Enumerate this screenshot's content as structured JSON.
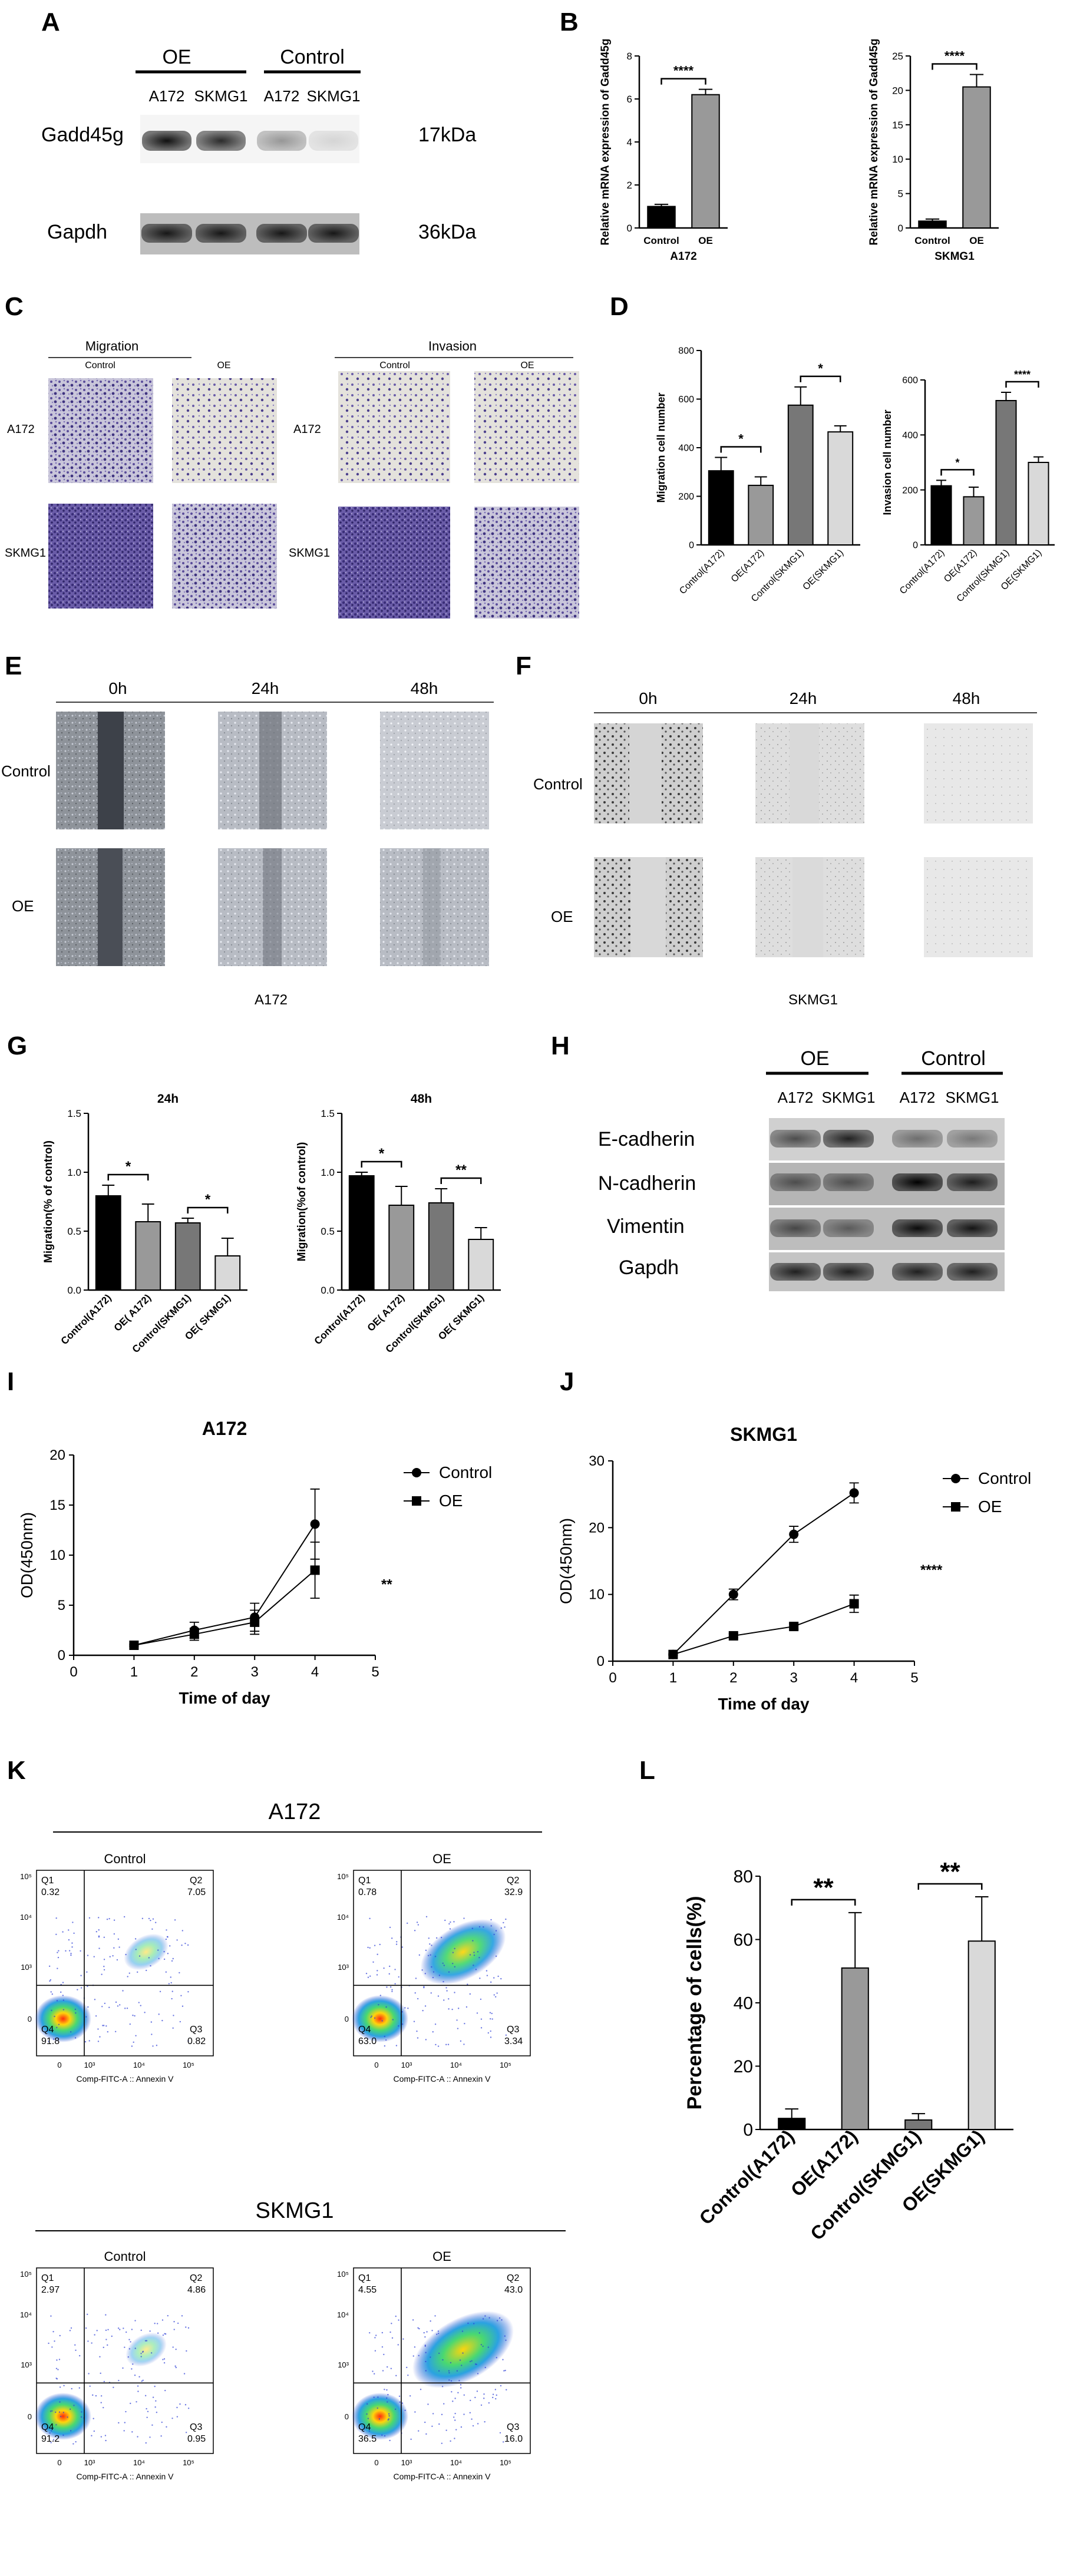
{
  "panel_letters": [
    "A",
    "B",
    "C",
    "D",
    "E",
    "F",
    "G",
    "H",
    "I",
    "J",
    "K",
    "L"
  ],
  "panel_a": {
    "group_oe": "OE",
    "group_control": "Control",
    "lanes": [
      "A172",
      "SKMG1",
      "A172",
      "SKMG1"
    ],
    "rows": [
      {
        "protein": "Gadd45g",
        "size": "17kDa",
        "intensity": [
          0.85,
          0.75,
          0.35,
          0.12
        ]
      },
      {
        "protein": "Gapdh",
        "size": "36kDa",
        "intensity": [
          0.8,
          0.8,
          0.8,
          0.8
        ]
      }
    ]
  },
  "panel_c": {
    "section_migration": "Migration",
    "section_invasion": "Invasion",
    "col_control": "Control",
    "col_oe": "OE",
    "rows": [
      "A172",
      "SKMG1"
    ]
  },
  "panel_e": {
    "times": [
      "0h",
      "24h",
      "48h"
    ],
    "rows": [
      "Control",
      "OE"
    ],
    "caption": "A172"
  },
  "panel_f": {
    "times": [
      "0h",
      "24h",
      "48h"
    ],
    "rows": [
      "Control",
      "OE"
    ],
    "caption": "SKMG1"
  },
  "panel_h": {
    "group_oe": "OE",
    "group_control": "Control",
    "lanes": [
      "A172",
      "SKMG1",
      "A172",
      "SKMG1"
    ],
    "rows": [
      {
        "protein": "E-cadherin",
        "intensity": [
          0.6,
          0.8,
          0.45,
          0.4
        ]
      },
      {
        "protein": "N-cadherin",
        "intensity": [
          0.55,
          0.55,
          0.95,
          0.8
        ]
      },
      {
        "protein": "Vimentin",
        "intensity": [
          0.6,
          0.5,
          0.9,
          0.85
        ]
      },
      {
        "protein": "Gapdh",
        "intensity": [
          0.8,
          0.8,
          0.8,
          0.8
        ]
      }
    ]
  },
  "panel_k": {
    "groups": [
      {
        "cell": "A172",
        "plots": [
          {
            "title": "Control",
            "q1": "0.32",
            "q2": "7.05",
            "q3": "0.82",
            "q4": "91.8"
          },
          {
            "title": "OE",
            "q1": "0.78",
            "q2": "32.9",
            "q3": "3.34",
            "q4": "63.0"
          }
        ]
      },
      {
        "cell": "SKMG1",
        "plots": [
          {
            "title": "Control",
            "q1": "2.97",
            "q2": "4.86",
            "q3": "0.95",
            "q4": "91.2"
          },
          {
            "title": "OE",
            "q1": "4.55",
            "q2": "43.0",
            "q3": "16.0",
            "q4": "36.5"
          }
        ]
      }
    ],
    "quadrant_labels": [
      "Q1",
      "Q2",
      "Q3",
      "Q4"
    ],
    "xlabel": "Comp-FITC-A :: Annexin V",
    "axis_ticks": [
      "10⁵",
      "10⁴",
      "10³",
      "0"
    ],
    "x_ticks": [
      "0",
      "10³",
      "10⁴",
      "10⁵"
    ]
  },
  "chart_data": [
    {
      "id": "B1",
      "type": "bar",
      "categories": [
        "Control",
        "OE"
      ],
      "values": [
        1.0,
        6.2
      ],
      "errors": [
        0.1,
        0.25
      ],
      "xlabel": "A172",
      "ylabel": "Relative mRNA expression of Gadd45g",
      "ylim": [
        0,
        8
      ],
      "yticks": [
        0,
        2,
        4,
        6,
        8
      ],
      "sig": "****",
      "colors": [
        "#000000",
        "#999999"
      ]
    },
    {
      "id": "B2",
      "type": "bar",
      "categories": [
        "Control",
        "OE"
      ],
      "values": [
        1.0,
        20.5
      ],
      "errors": [
        0.3,
        1.8
      ],
      "xlabel": "SKMG1",
      "ylabel": "Relative mRNA expression of Gadd45g",
      "ylim": [
        0,
        25
      ],
      "yticks": [
        0,
        5,
        10,
        15,
        20,
        25
      ],
      "sig": "****",
      "colors": [
        "#000000",
        "#999999"
      ]
    },
    {
      "id": "D1",
      "type": "bar",
      "categories": [
        "Control(A172)",
        "OE(A172)",
        "Control(SKMG1)",
        "OE(SKMG1)"
      ],
      "values": [
        305,
        245,
        575,
        465
      ],
      "errors": [
        55,
        35,
        75,
        25
      ],
      "ylabel": "Migration cell number",
      "ylim": [
        0,
        800
      ],
      "yticks": [
        0,
        200,
        400,
        600,
        800
      ],
      "sigs": [
        "*",
        "*"
      ],
      "colors": [
        "#000000",
        "#999999",
        "#777777",
        "#d9d9d9"
      ]
    },
    {
      "id": "D2",
      "type": "bar",
      "categories": [
        "Control(A172)",
        "OE(A172)",
        "Control(SKMG1)",
        "OE(SKMG1)"
      ],
      "values": [
        215,
        175,
        525,
        300
      ],
      "errors": [
        20,
        35,
        30,
        20
      ],
      "ylabel": "Invasion cell number",
      "ylim": [
        0,
        600
      ],
      "yticks": [
        0,
        200,
        400,
        600
      ],
      "sigs": [
        "*",
        "****"
      ],
      "colors": [
        "#000000",
        "#999999",
        "#777777",
        "#d9d9d9"
      ]
    },
    {
      "id": "G1",
      "type": "bar",
      "title": "24h",
      "categories": [
        "Control(A172)",
        "OE( A172)",
        "Control(SKMG1)",
        "OE( SKMG1)"
      ],
      "values": [
        0.8,
        0.58,
        0.57,
        0.29
      ],
      "errors": [
        0.09,
        0.15,
        0.04,
        0.15
      ],
      "ylabel": "Migration(% of control)",
      "ylim": [
        0,
        1.5
      ],
      "yticks": [
        "0.0",
        "0.5",
        "1.0",
        "1.5"
      ],
      "sigs": [
        "*",
        "*"
      ],
      "colors": [
        "#000000",
        "#999999",
        "#777777",
        "#d9d9d9"
      ]
    },
    {
      "id": "G2",
      "type": "bar",
      "title": "48h",
      "categories": [
        "Control(A172)",
        "OE( A172)",
        "Control(SKMG1)",
        "OE( SKMG1)"
      ],
      "values": [
        0.97,
        0.72,
        0.74,
        0.43
      ],
      "errors": [
        0.03,
        0.16,
        0.12,
        0.1
      ],
      "ylabel": "Migration(%of control)",
      "ylim": [
        0,
        1.5
      ],
      "yticks": [
        "0.0",
        "0.5",
        "1.0",
        "1.5"
      ],
      "sigs": [
        "*",
        "**"
      ],
      "colors": [
        "#000000",
        "#999999",
        "#777777",
        "#d9d9d9"
      ]
    },
    {
      "id": "I",
      "type": "line",
      "title": "A172",
      "x": [
        1,
        2,
        3,
        4
      ],
      "series": [
        {
          "name": "Control",
          "values": [
            1.0,
            2.5,
            3.8,
            13.1
          ],
          "errors": [
            0.1,
            0.8,
            1.4,
            3.5
          ],
          "marker": "circle"
        },
        {
          "name": "OE",
          "values": [
            1.0,
            2.1,
            3.3,
            8.5
          ],
          "errors": [
            0.1,
            0.6,
            1.2,
            2.8
          ],
          "marker": "square"
        }
      ],
      "xlabel": "Time of day",
      "ylabel": "OD(450nm)",
      "xlim": [
        0,
        5
      ],
      "ylim": [
        0,
        20
      ],
      "yticks": [
        0,
        5,
        10,
        15,
        20
      ],
      "sig": "**"
    },
    {
      "id": "J",
      "type": "line",
      "title": "SKMG1",
      "x": [
        1,
        2,
        3,
        4
      ],
      "series": [
        {
          "name": "Control",
          "values": [
            1.0,
            10.0,
            19.0,
            25.2
          ],
          "errors": [
            0.1,
            0.8,
            1.2,
            1.5
          ],
          "marker": "circle"
        },
        {
          "name": "OE",
          "values": [
            1.0,
            3.8,
            5.2,
            8.6
          ],
          "errors": [
            0.1,
            0.3,
            0.4,
            1.3
          ],
          "marker": "square"
        }
      ],
      "xlabel": "Time of day",
      "ylabel": "OD(450nm)",
      "xlim": [
        0,
        5
      ],
      "ylim": [
        0,
        30
      ],
      "yticks": [
        0,
        10,
        20,
        30
      ],
      "sig": "****"
    },
    {
      "id": "L",
      "type": "bar",
      "categories": [
        "Control(A172)",
        "OE(A172)",
        "Control(SKMG1)",
        "OE(SKMG1)"
      ],
      "values": [
        3.5,
        51,
        3.0,
        59.5
      ],
      "errors": [
        3.0,
        17.5,
        2.0,
        14
      ],
      "ylabel": "Percentage of cells(%)",
      "ylim": [
        0,
        80
      ],
      "yticks": [
        0,
        20,
        40,
        60,
        80
      ],
      "sigs": [
        "**",
        "**"
      ],
      "colors": [
        "#000000",
        "#999999",
        "#777777",
        "#d9d9d9"
      ]
    }
  ]
}
